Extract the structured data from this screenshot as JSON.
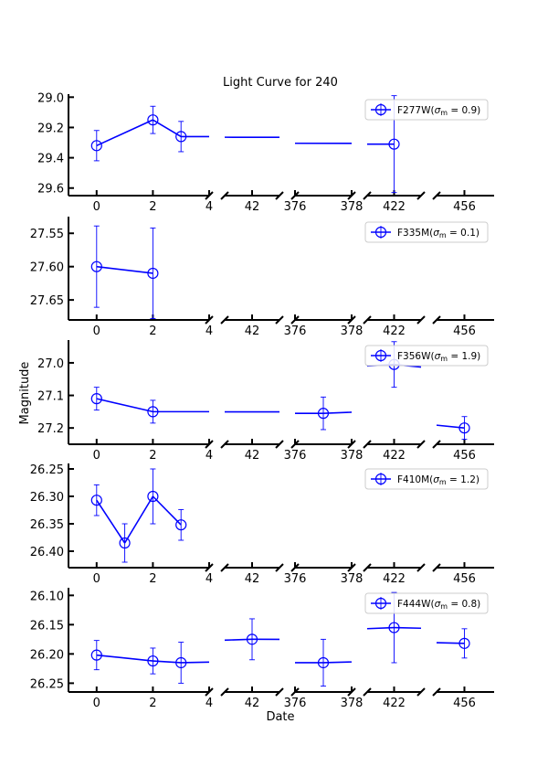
{
  "chart_data": {
    "type": "line",
    "title": "Light Curve for 240",
    "xlabel": "Date",
    "ylabel": "Magnitude",
    "y_inverted": true,
    "line_color": "#0000ff",
    "marker": "open-circle",
    "segments": [
      {
        "tick_values": [
          0,
          2,
          4
        ],
        "tick_labels": [
          "0",
          "2",
          "4"
        ],
        "xlim": [
          -1,
          4
        ]
      },
      {
        "tick_values": [
          42
        ],
        "tick_labels": [
          "42"
        ],
        "xlim": [
          40.6,
          43.4
        ]
      },
      {
        "tick_values": [
          376,
          378
        ],
        "tick_labels": [
          "376",
          "378"
        ],
        "xlim": [
          376,
          378
        ]
      },
      {
        "tick_values": [
          422
        ],
        "tick_labels": [
          "422"
        ],
        "xlim": [
          420.6,
          423.4
        ]
      },
      {
        "tick_values": [
          456
        ],
        "tick_labels": [
          "456"
        ],
        "xlim": [
          454.5,
          457.6
        ]
      }
    ],
    "panels": [
      {
        "legend": "F277W(σ_m = 0.9)",
        "legend_filter": "F277W",
        "legend_sigma": "0.9",
        "ylim": [
          29.65,
          28.98
        ],
        "yticks": [
          29.0,
          29.2,
          29.4,
          29.6
        ],
        "ytick_labels": [
          "29.0",
          "29.2",
          "29.4",
          "29.6"
        ],
        "points": [
          {
            "x": 0,
            "y": 29.32,
            "err": 0.1
          },
          {
            "x": 2,
            "y": 29.15,
            "err": 0.09
          },
          {
            "x": 3,
            "y": 29.26,
            "err": 0.1
          },
          {
            "x": 422,
            "y": 29.31,
            "err": 0.32
          }
        ]
      },
      {
        "legend": "F335M(σ_m = 0.1)",
        "legend_filter": "F335M",
        "legend_sigma": "0.1",
        "ylim": [
          27.68,
          27.525
        ],
        "yticks": [
          27.55,
          27.6,
          27.65
        ],
        "ytick_labels": [
          "27.55",
          "27.60",
          "27.65"
        ],
        "points": [
          {
            "x": 0,
            "y": 27.6,
            "err": 0.061
          },
          {
            "x": 2,
            "y": 27.61,
            "err": 0.068
          }
        ]
      },
      {
        "legend": "F356W(σ_m = 1.9)",
        "legend_filter": "F356W",
        "legend_sigma": "1.9",
        "ylim": [
          27.25,
          26.93
        ],
        "yticks": [
          27.0,
          27.1,
          27.2
        ],
        "ytick_labels": [
          "27.0",
          "27.1",
          "27.2"
        ],
        "points": [
          {
            "x": 0,
            "y": 27.11,
            "err": 0.035
          },
          {
            "x": 2,
            "y": 27.15,
            "err": 0.035
          },
          {
            "x": 377,
            "y": 27.155,
            "err": 0.05
          },
          {
            "x": 422,
            "y": 27.005,
            "err": 0.07
          },
          {
            "x": 456,
            "y": 27.2,
            "err": 0.035
          }
        ]
      },
      {
        "legend": "F410M(σ_m = 1.2)",
        "legend_filter": "F410M",
        "legend_sigma": "1.2",
        "ylim": [
          26.43,
          26.24
        ],
        "yticks": [
          26.25,
          26.3,
          26.35,
          26.4
        ],
        "ytick_labels": [
          "26.25",
          "26.30",
          "26.35",
          "26.40"
        ],
        "points": [
          {
            "x": 0,
            "y": 26.307,
            "err": 0.028
          },
          {
            "x": 1,
            "y": 26.385,
            "err": 0.035
          },
          {
            "x": 2,
            "y": 26.3,
            "err": 0.05
          },
          {
            "x": 3,
            "y": 26.352,
            "err": 0.028
          }
        ]
      },
      {
        "legend": "F444W(σ_m = 0.8)",
        "legend_filter": "F444W",
        "legend_sigma": "0.8",
        "ylim": [
          26.265,
          26.087
        ],
        "yticks": [
          26.1,
          26.15,
          26.2,
          26.25
        ],
        "ytick_labels": [
          "26.10",
          "26.15",
          "26.20",
          "26.25"
        ],
        "points": [
          {
            "x": 0,
            "y": 26.202,
            "err": 0.025
          },
          {
            "x": 2,
            "y": 26.212,
            "err": 0.022
          },
          {
            "x": 3,
            "y": 26.215,
            "err": 0.035
          },
          {
            "x": 42,
            "y": 26.175,
            "err": 0.035
          },
          {
            "x": 377,
            "y": 26.215,
            "err": 0.04
          },
          {
            "x": 422,
            "y": 26.155,
            "err": 0.06
          },
          {
            "x": 456,
            "y": 26.182,
            "err": 0.025
          }
        ]
      }
    ]
  }
}
